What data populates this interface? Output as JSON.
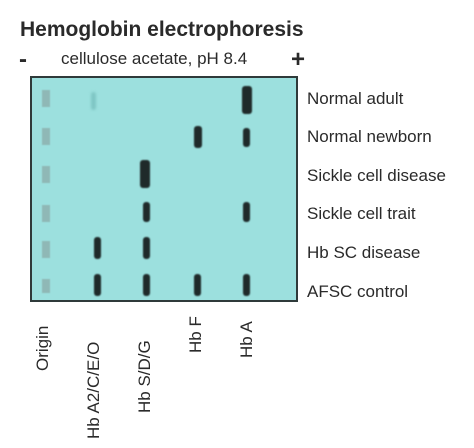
{
  "title": "Hemoglobin electrophoresis",
  "subtitle": "cellulose acetate, pH 8.4",
  "cathode_label": "-",
  "anode_label": "+",
  "colors": {
    "gel_background": "#9ce0de",
    "band": "#1f2a2a",
    "faint_band": "#7fc6c4",
    "origin_well": "#8fb8b6"
  },
  "samples": [
    {
      "label": "Normal adult"
    },
    {
      "label": "Normal newborn"
    },
    {
      "label": "Sickle cell disease"
    },
    {
      "label": "Sickle cell trait"
    },
    {
      "label": "Hb SC disease"
    },
    {
      "label": "AFSC control"
    }
  ],
  "positions": [
    {
      "label": "Origin"
    },
    {
      "label": "Hb A2/C/E/O"
    },
    {
      "label": "Hb S/D/G"
    },
    {
      "label": "Hb F"
    },
    {
      "label": "Hb A"
    }
  ]
}
